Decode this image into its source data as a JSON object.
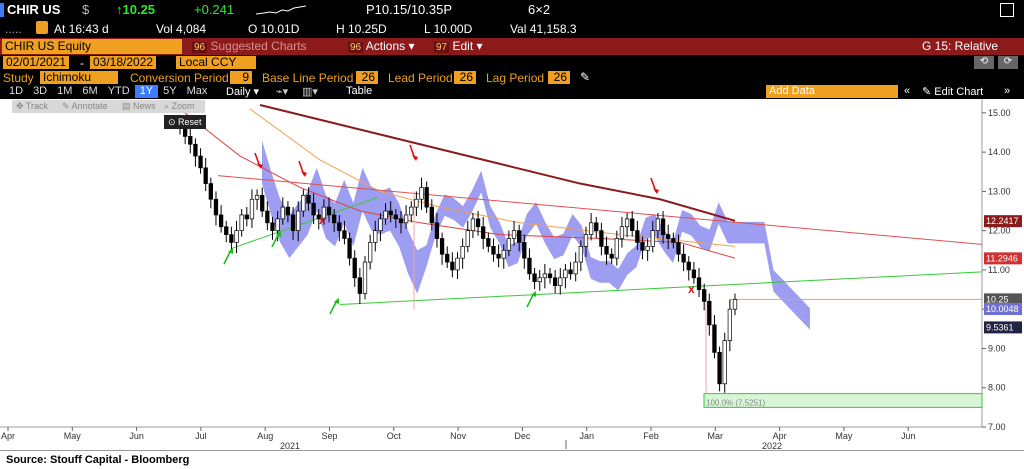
{
  "header": {
    "ticker": "CHIR US",
    "currency_symbol": "$",
    "last_price": "↑10.25",
    "change": "+0.241",
    "bid_ask": "P10.15/10.35P",
    "size": "6×2",
    "at_time": "At 16:43 d",
    "volume": "Vol 4,084",
    "open": "O 10.01D",
    "high": "H 10.25D",
    "low": "L 10.00D",
    "value": "Val 41,158.3",
    "dots": "....."
  },
  "toolbar": {
    "security": "CHIR US Equity",
    "suggested_charts": "Suggested Charts",
    "suggested_num": "96",
    "actions": "Actions",
    "actions_num": "96",
    "edit": "Edit",
    "edit_num": "97",
    "right_label": "G 15: Relative"
  },
  "date_row": {
    "start": "02/01/2021",
    "end": "03/18/2022",
    "currency": "Local CCY"
  },
  "study_row": {
    "study_label": "Study",
    "study": "Ichimoku",
    "conv_label": "Conversion Period",
    "conv": "9",
    "base_label": "Base Line Period",
    "base": "26",
    "lead_label": "Lead Period",
    "lead": "26",
    "lag_label": "Lag Period",
    "lag": "26"
  },
  "range_tabs": [
    "1D",
    "3D",
    "1M",
    "6M",
    "YTD",
    "1Y",
    "5Y",
    "Max"
  ],
  "active_tab": "1Y",
  "period": "Daily",
  "table_label": "Table",
  "add_data": "Add Data",
  "edit_chart": "Edit Chart",
  "mini_toolbar": {
    "track": "Track",
    "annotate": "Annotate",
    "news": "News",
    "zoom": "Zoom",
    "reset": "Reset"
  },
  "footer": {
    "source": "Source: Stouff Capital - Bloomberg"
  },
  "colors": {
    "cloud": "#8c8cf0",
    "ma_short": "#e04040",
    "ma_mid": "#f0a050",
    "ma_long": "#8b1a1a",
    "trend_green": "#33cc33",
    "trend_red": "#e05050",
    "arrow_red": "#dd1111",
    "arrow_green": "#22bb22"
  },
  "chart_data": {
    "type": "candlestick",
    "x_ticks": [
      "Apr",
      "May",
      "Jun",
      "Jul",
      "Aug",
      "Sep",
      "Oct",
      "Nov",
      "Dec",
      "Jan",
      "Feb",
      "Mar",
      "Apr",
      "May",
      "Jun"
    ],
    "year_labels": [
      "2021",
      "2022"
    ],
    "y_ticks": [
      7.0,
      8.0,
      9.0,
      10.0,
      11.0,
      12.0,
      13.0,
      14.0,
      15.0
    ],
    "ylim": [
      7.0,
      15.2
    ],
    "price_tags": [
      {
        "value": 12.2417,
        "label": "12.2417",
        "color": "#8b1a1a"
      },
      {
        "value": 11.2946,
        "label": "11.2946",
        "color": "#d03030"
      },
      {
        "value": 10.25,
        "label": "10.25",
        "color": "#555555"
      },
      {
        "value": 10.0048,
        "label": "10.0048",
        "color": "#7070d0"
      },
      {
        "value": 9.5361,
        "label": "9.5361",
        "color": "#222244"
      }
    ],
    "annotation": "100.0% (7.5251)",
    "closes": [
      14.6,
      14.4,
      14.2,
      13.9,
      13.6,
      13.2,
      12.8,
      12.4,
      12.1,
      11.9,
      11.7,
      12.0,
      12.4,
      12.3,
      12.8,
      12.9,
      12.5,
      12.2,
      12.0,
      12.3,
      12.6,
      12.4,
      12.0,
      12.5,
      12.9,
      12.7,
      12.4,
      12.3,
      12.6,
      12.4,
      12.2,
      12.0,
      11.8,
      11.3,
      10.8,
      10.4,
      11.2,
      11.7,
      12.0,
      12.3,
      12.5,
      12.4,
      12.3,
      12.2,
      12.4,
      12.6,
      12.8,
      13.1,
      12.6,
      12.2,
      11.8,
      11.4,
      11.2,
      11.0,
      11.3,
      11.6,
      12.0,
      12.3,
      12.1,
      11.8,
      11.6,
      11.4,
      11.3,
      11.5,
      11.8,
      12.0,
      11.7,
      11.3,
      10.9,
      10.7,
      10.8,
      10.9,
      10.8,
      10.6,
      10.8,
      11.0,
      10.9,
      11.2,
      11.6,
      11.9,
      12.2,
      12.0,
      11.6,
      11.4,
      11.3,
      11.8,
      12.1,
      12.3,
      12.0,
      11.7,
      11.5,
      11.6,
      12.0,
      12.3,
      11.9,
      11.8,
      11.7,
      11.4,
      11.2,
      11.0,
      10.8,
      10.5,
      10.2,
      9.6,
      8.9,
      8.1,
      9.2,
      10.0,
      10.25
    ]
  }
}
